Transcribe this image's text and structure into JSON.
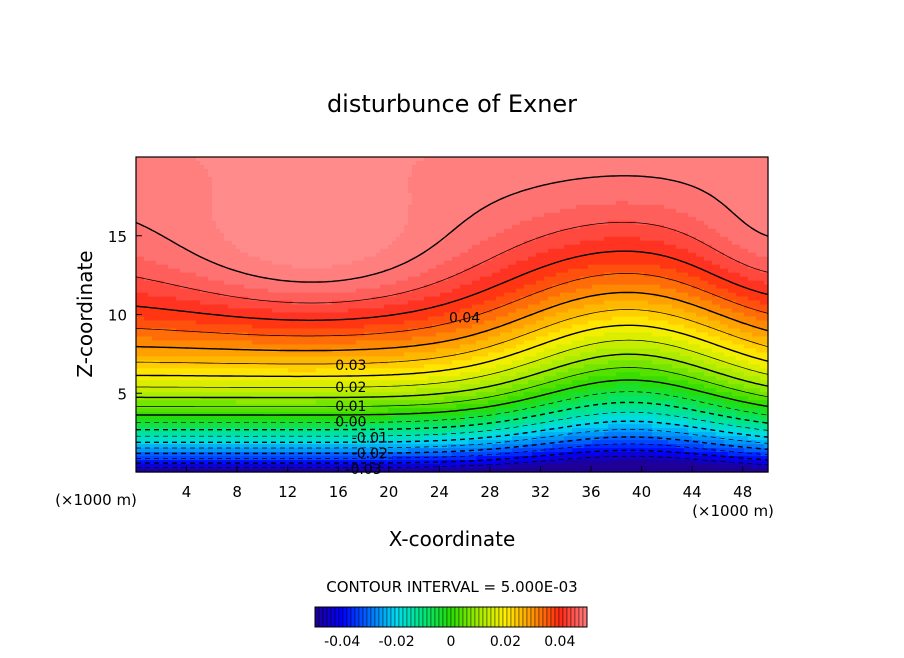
{
  "chart_data": {
    "type": "heatmap",
    "title": "disturbunce of Exner",
    "xlabel": "X-coordinate",
    "ylabel": "Z-coordinate",
    "x_unit": "(×1000 m)",
    "y_unit": "(×1000 m)",
    "xlim": [
      0,
      50
    ],
    "ylim": [
      0,
      20
    ],
    "x_ticks": [
      4,
      8,
      12,
      16,
      20,
      24,
      28,
      32,
      36,
      40,
      44,
      48
    ],
    "y_ticks": [
      5,
      10,
      15
    ],
    "contour_interval_text": "CONTOUR INTERVAL = 5.000E-03",
    "contour_labels": [
      {
        "text": "0.04",
        "x": 26,
        "z": 9.8
      },
      {
        "text": "0.03",
        "x": 17,
        "z": 6.8
      },
      {
        "text": "0.02",
        "x": 17,
        "z": 5.4
      },
      {
        "text": "0.01",
        "x": 17,
        "z": 4.2
      },
      {
        "text": "0.00",
        "x": 17,
        "z": 3.2
      },
      {
        "text": "-0.01",
        "x": 18.5,
        "z": 2.2
      },
      {
        "text": "-0.02",
        "x": 18.5,
        "z": 1.2
      },
      {
        "text": "-0.03",
        "x": 18,
        "z": 0.2
      }
    ],
    "field_summary": {
      "max_region": {
        "x_center": 14,
        "z_center": 13.5,
        "value_approx": 0.055
      },
      "min_region": {
        "x_center": 39,
        "z_center": 0,
        "value_approx": -0.05
      },
      "value_range": [
        -0.05,
        0.055
      ]
    },
    "colorbar": {
      "ticks": [
        "-0.04",
        "-0.02",
        "0",
        "0.02",
        "0.04"
      ],
      "range": [
        -0.05,
        0.05
      ]
    }
  }
}
